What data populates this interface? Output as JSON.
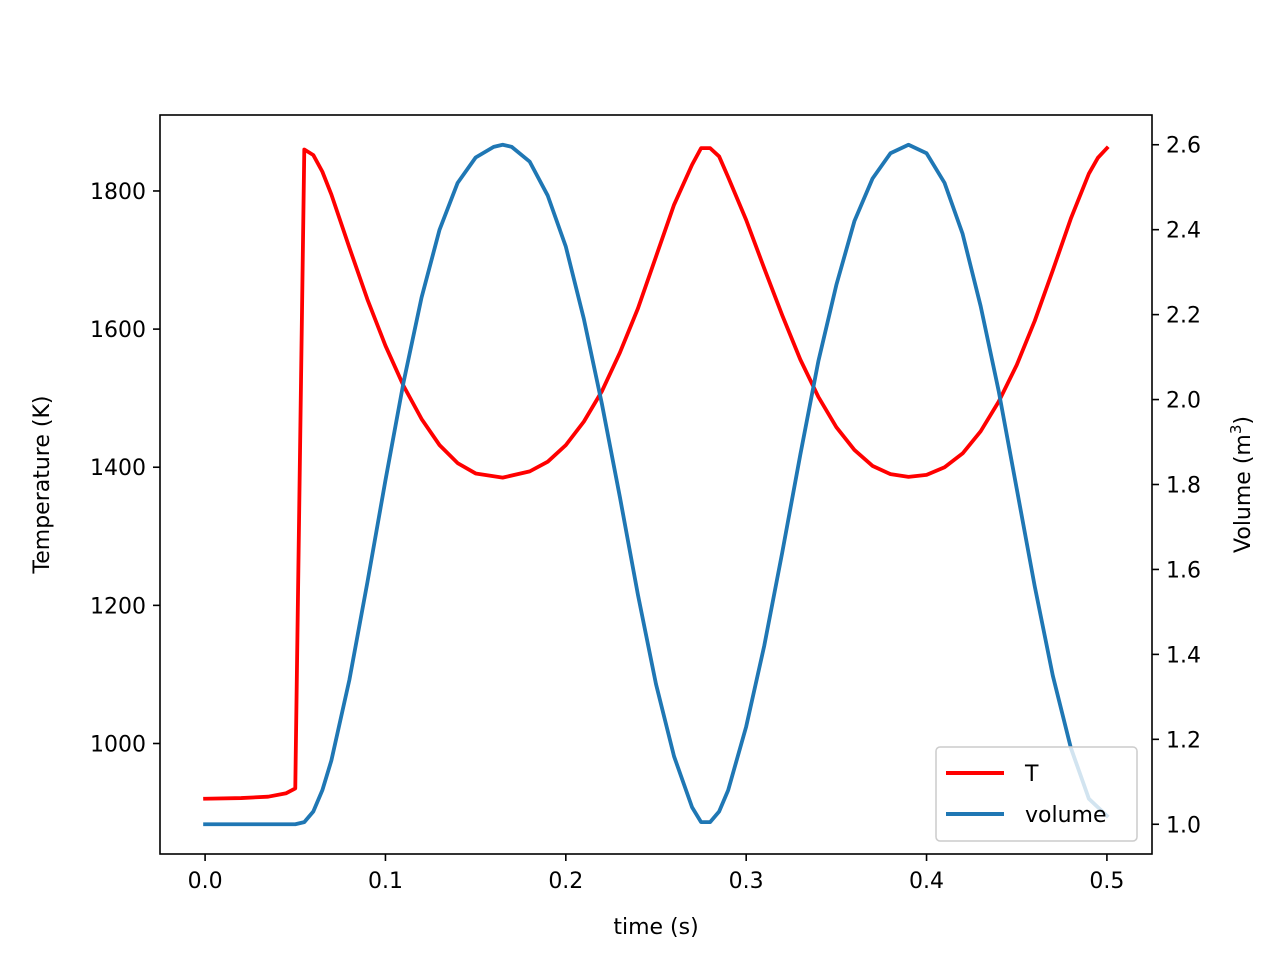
{
  "chart_data": {
    "type": "line",
    "title": "",
    "xlabel": "time (s)",
    "ylabel_left": "Temperature (K)",
    "ylabel_right_prefix": "Volume (m",
    "ylabel_right_sup": "3",
    "ylabel_right_suffix": ")",
    "xlim": [
      -0.025,
      0.525
    ],
    "ylim_left": [
      840,
      1910
    ],
    "ylim_right": [
      0.93,
      2.67
    ],
    "x_ticks": [
      0.0,
      0.1,
      0.2,
      0.3,
      0.4,
      0.5
    ],
    "x_tick_labels": [
      "0.0",
      "0.1",
      "0.2",
      "0.3",
      "0.4",
      "0.5"
    ],
    "y_left_ticks": [
      1000,
      1200,
      1400,
      1600,
      1800
    ],
    "y_left_tick_labels": [
      "1000",
      "1200",
      "1400",
      "1600",
      "1800"
    ],
    "y_right_ticks": [
      1.0,
      1.2,
      1.4,
      1.6,
      1.8,
      2.0,
      2.2,
      2.4,
      2.6
    ],
    "y_right_tick_labels": [
      "1.0",
      "1.2",
      "1.4",
      "1.6",
      "1.8",
      "2.0",
      "2.2",
      "2.4",
      "2.6"
    ],
    "grid": false,
    "legend_position": "lower-right",
    "series": [
      {
        "name": "T",
        "axis": "left",
        "color": "#ff0000",
        "points": [
          [
            0.0,
            920
          ],
          [
            0.02,
            921
          ],
          [
            0.035,
            923
          ],
          [
            0.045,
            928
          ],
          [
            0.05,
            935
          ],
          [
            0.055,
            1860
          ],
          [
            0.06,
            1852
          ],
          [
            0.065,
            1828
          ],
          [
            0.07,
            1795
          ],
          [
            0.08,
            1718
          ],
          [
            0.09,
            1643
          ],
          [
            0.1,
            1576
          ],
          [
            0.11,
            1518
          ],
          [
            0.12,
            1470
          ],
          [
            0.13,
            1432
          ],
          [
            0.14,
            1406
          ],
          [
            0.15,
            1391
          ],
          [
            0.165,
            1385
          ],
          [
            0.18,
            1394
          ],
          [
            0.19,
            1408
          ],
          [
            0.2,
            1432
          ],
          [
            0.21,
            1466
          ],
          [
            0.22,
            1510
          ],
          [
            0.23,
            1566
          ],
          [
            0.24,
            1630
          ],
          [
            0.25,
            1705
          ],
          [
            0.26,
            1780
          ],
          [
            0.27,
            1838
          ],
          [
            0.275,
            1862
          ],
          [
            0.28,
            1862
          ],
          [
            0.285,
            1850
          ],
          [
            0.29,
            1820
          ],
          [
            0.3,
            1758
          ],
          [
            0.31,
            1688
          ],
          [
            0.32,
            1620
          ],
          [
            0.33,
            1556
          ],
          [
            0.34,
            1502
          ],
          [
            0.35,
            1458
          ],
          [
            0.36,
            1425
          ],
          [
            0.37,
            1402
          ],
          [
            0.38,
            1390
          ],
          [
            0.39,
            1386
          ],
          [
            0.4,
            1389
          ],
          [
            0.41,
            1400
          ],
          [
            0.42,
            1420
          ],
          [
            0.43,
            1452
          ],
          [
            0.44,
            1495
          ],
          [
            0.45,
            1548
          ],
          [
            0.46,
            1612
          ],
          [
            0.47,
            1685
          ],
          [
            0.48,
            1760
          ],
          [
            0.49,
            1825
          ],
          [
            0.495,
            1848
          ],
          [
            0.5,
            1862
          ]
        ]
      },
      {
        "name": "volume",
        "axis": "right",
        "color": "#1f77b4",
        "points": [
          [
            0.0,
            1.0
          ],
          [
            0.05,
            1.0
          ],
          [
            0.055,
            1.005
          ],
          [
            0.06,
            1.03
          ],
          [
            0.065,
            1.08
          ],
          [
            0.07,
            1.15
          ],
          [
            0.08,
            1.34
          ],
          [
            0.09,
            1.57
          ],
          [
            0.1,
            1.81
          ],
          [
            0.11,
            2.04
          ],
          [
            0.12,
            2.24
          ],
          [
            0.13,
            2.4
          ],
          [
            0.14,
            2.51
          ],
          [
            0.15,
            2.57
          ],
          [
            0.16,
            2.595
          ],
          [
            0.165,
            2.6
          ],
          [
            0.17,
            2.595
          ],
          [
            0.18,
            2.56
          ],
          [
            0.19,
            2.48
          ],
          [
            0.2,
            2.36
          ],
          [
            0.21,
            2.19
          ],
          [
            0.22,
            1.99
          ],
          [
            0.23,
            1.77
          ],
          [
            0.24,
            1.54
          ],
          [
            0.25,
            1.33
          ],
          [
            0.26,
            1.16
          ],
          [
            0.27,
            1.04
          ],
          [
            0.275,
            1.005
          ],
          [
            0.28,
            1.005
          ],
          [
            0.285,
            1.03
          ],
          [
            0.29,
            1.08
          ],
          [
            0.3,
            1.23
          ],
          [
            0.31,
            1.42
          ],
          [
            0.32,
            1.64
          ],
          [
            0.33,
            1.87
          ],
          [
            0.34,
            2.09
          ],
          [
            0.35,
            2.27
          ],
          [
            0.36,
            2.42
          ],
          [
            0.37,
            2.52
          ],
          [
            0.38,
            2.58
          ],
          [
            0.39,
            2.6
          ],
          [
            0.4,
            2.58
          ],
          [
            0.41,
            2.51
          ],
          [
            0.42,
            2.39
          ],
          [
            0.43,
            2.22
          ],
          [
            0.44,
            2.02
          ],
          [
            0.45,
            1.79
          ],
          [
            0.46,
            1.56
          ],
          [
            0.47,
            1.35
          ],
          [
            0.48,
            1.18
          ],
          [
            0.485,
            1.12
          ],
          [
            0.49,
            1.06
          ],
          [
            0.5,
            1.02
          ]
        ]
      }
    ]
  }
}
